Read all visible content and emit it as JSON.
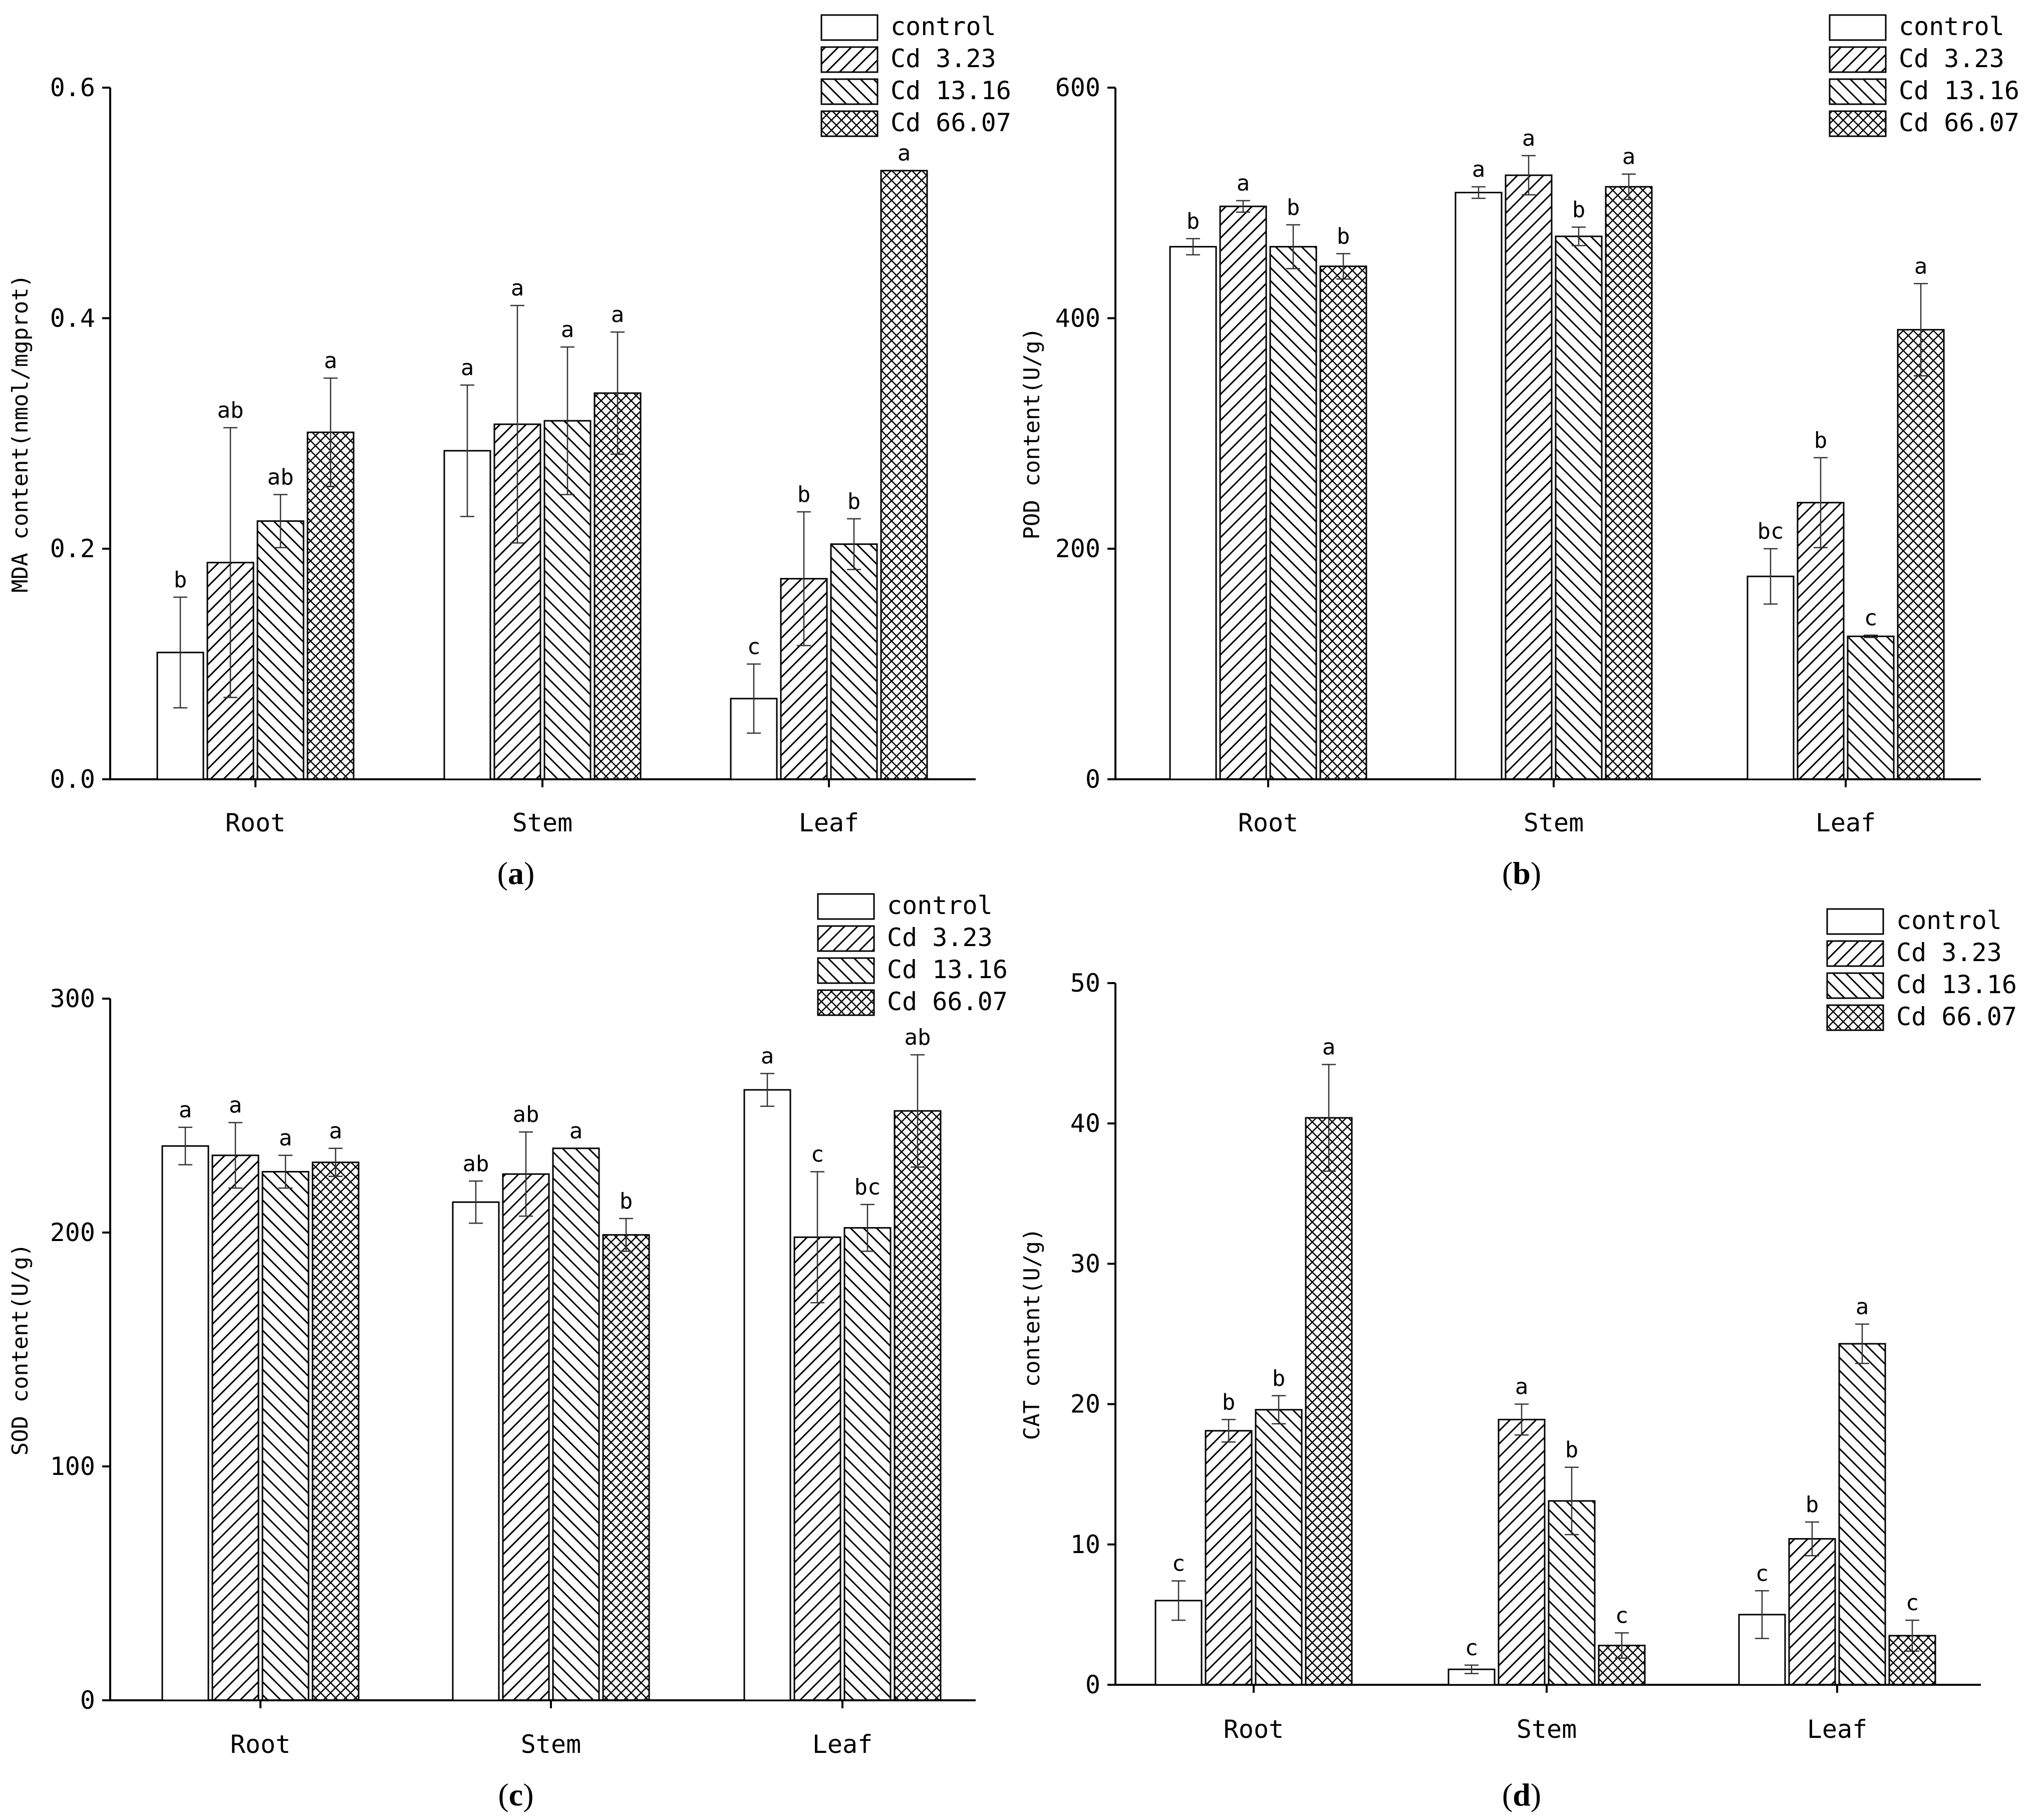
{
  "series_styles": [
    {
      "pattern": "none"
    },
    {
      "pattern": "fwd"
    },
    {
      "pattern": "back"
    },
    {
      "pattern": "cross"
    }
  ],
  "chart_data": [
    {
      "type": "bar",
      "panel_label": "a",
      "categories": [
        "Root",
        "Stem",
        "Leaf"
      ],
      "ylabel": "MDA content(nmol/mgprot)",
      "xlabel": "",
      "ylim": [
        0,
        0.6
      ],
      "yticks": [
        "0.0",
        "0.2",
        "0.4",
        "0.6"
      ],
      "yticks_values": [
        0,
        0.2,
        0.4,
        0.6
      ],
      "legend_position": "top-right",
      "series": [
        {
          "name": "control",
          "values": [
            0.11,
            0.285,
            0.07
          ],
          "errors": [
            0.048,
            0.057,
            0.03
          ],
          "letters": [
            "b",
            "a",
            "c"
          ]
        },
        {
          "name": "Cd 3.23",
          "values": [
            0.188,
            0.308,
            0.174
          ],
          "errors": [
            0.117,
            0.103,
            0.058
          ],
          "letters": [
            "ab",
            "a",
            "b"
          ]
        },
        {
          "name": "Cd 13.16",
          "values": [
            0.224,
            0.311,
            0.204
          ],
          "errors": [
            0.023,
            0.064,
            0.022
          ],
          "letters": [
            "ab",
            "a",
            "b"
          ]
        },
        {
          "name": "Cd 66.07",
          "values": [
            0.301,
            0.335,
            0.528
          ],
          "errors": [
            0.047,
            0.053,
            0.0
          ],
          "letters": [
            "a",
            "a",
            "a"
          ]
        }
      ]
    },
    {
      "type": "bar",
      "panel_label": "b",
      "categories": [
        "Root",
        "Stem",
        "Leaf"
      ],
      "ylabel": "POD content(U/g)",
      "xlabel": "",
      "ylim": [
        0,
        600
      ],
      "yticks": [
        "0",
        "200",
        "400",
        "600"
      ],
      "yticks_values": [
        0,
        200,
        400,
        600
      ],
      "legend_position": "top-right",
      "series": [
        {
          "name": "control",
          "values": [
            462,
            509,
            176
          ],
          "errors": [
            7,
            5,
            24
          ],
          "letters": [
            "b",
            "a",
            "bc"
          ]
        },
        {
          "name": "Cd 3.23",
          "values": [
            497,
            524,
            240
          ],
          "errors": [
            5,
            17,
            39
          ],
          "letters": [
            "a",
            "a",
            "b"
          ]
        },
        {
          "name": "Cd 13.16",
          "values": [
            462,
            471,
            124
          ],
          "errors": [
            19,
            8,
            1
          ],
          "letters": [
            "b",
            "b",
            "c"
          ]
        },
        {
          "name": "Cd 66.07",
          "values": [
            445,
            514,
            390
          ],
          "errors": [
            11,
            11,
            40
          ],
          "letters": [
            "b",
            "a",
            "a"
          ]
        }
      ]
    },
    {
      "type": "bar",
      "panel_label": "c",
      "categories": [
        "Root",
        "Stem",
        "Leaf"
      ],
      "ylabel": "SOD content(U/g)",
      "xlabel": "",
      "ylim": [
        0,
        300
      ],
      "yticks": [
        "0",
        "100",
        "200",
        "300"
      ],
      "yticks_values": [
        0,
        100,
        200,
        300
      ],
      "legend_position": "top-right",
      "series": [
        {
          "name": "control",
          "values": [
            237,
            213,
            261
          ],
          "errors": [
            8,
            9,
            7
          ],
          "letters": [
            "a",
            "ab",
            "a"
          ]
        },
        {
          "name": "Cd 3.23",
          "values": [
            233,
            225,
            198
          ],
          "errors": [
            14,
            18,
            28
          ],
          "letters": [
            "a",
            "ab",
            "c"
          ]
        },
        {
          "name": "Cd 13.16",
          "values": [
            226,
            236,
            202
          ],
          "errors": [
            7,
            0,
            10
          ],
          "letters": [
            "a",
            "a",
            "bc"
          ]
        },
        {
          "name": "Cd 66.07",
          "values": [
            230,
            199,
            252
          ],
          "errors": [
            6,
            7,
            24
          ],
          "letters": [
            "a",
            "b",
            "ab"
          ]
        }
      ]
    },
    {
      "type": "bar",
      "panel_label": "d",
      "categories": [
        "Root",
        "Stem",
        "Leaf"
      ],
      "ylabel": "CAT content(U/g)",
      "xlabel": "",
      "ylim": [
        0,
        50
      ],
      "yticks": [
        "0",
        "10",
        "20",
        "30",
        "40",
        "50"
      ],
      "yticks_values": [
        0,
        10,
        20,
        30,
        40,
        50
      ],
      "legend_position": "top-right",
      "series": [
        {
          "name": "control",
          "values": [
            6.0,
            1.1,
            5.0
          ],
          "errors": [
            1.4,
            0.3,
            1.7
          ],
          "letters": [
            "c",
            "c",
            "c"
          ]
        },
        {
          "name": "Cd 3.23",
          "values": [
            18.1,
            18.9,
            10.4
          ],
          "errors": [
            0.8,
            1.1,
            1.2
          ],
          "letters": [
            "b",
            "a",
            "b"
          ]
        },
        {
          "name": "Cd 13.16",
          "values": [
            19.6,
            13.1,
            24.3
          ],
          "errors": [
            1.0,
            2.4,
            1.4
          ],
          "letters": [
            "b",
            "b",
            "a"
          ]
        },
        {
          "name": "Cd 66.07",
          "values": [
            40.4,
            2.8,
            3.5
          ],
          "errors": [
            3.8,
            0.9,
            1.1
          ],
          "letters": [
            "a",
            "c",
            "c"
          ]
        }
      ]
    }
  ]
}
